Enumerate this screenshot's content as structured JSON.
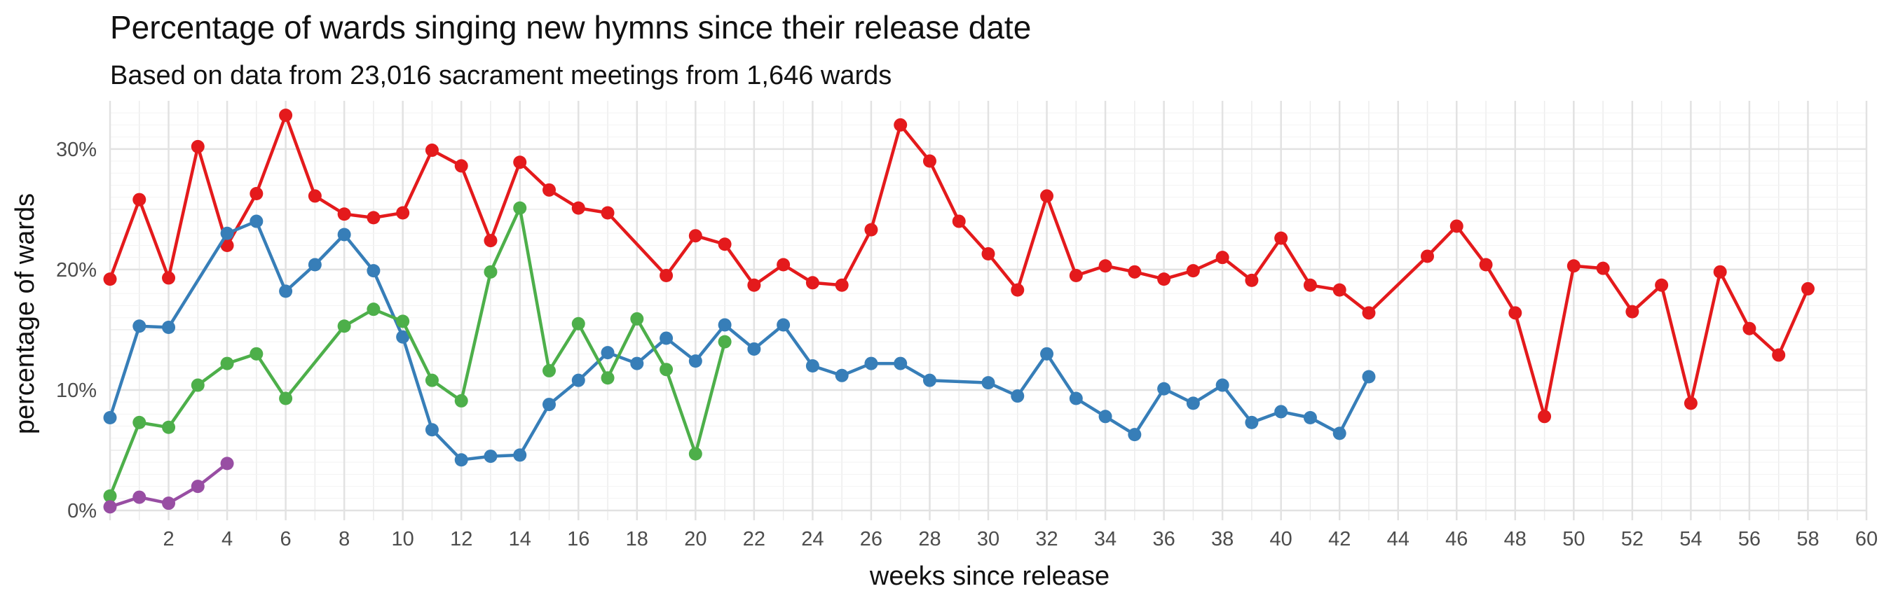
{
  "chart_data": {
    "type": "line",
    "title": "Percentage of wards singing new hymns since their release date",
    "subtitle": "Based on data from 23,016 sacrament meetings from 1,646 wards",
    "xlabel": "weeks since release",
    "ylabel": "percentage of wards",
    "xlim": [
      0,
      60
    ],
    "ylim": [
      0,
      34
    ],
    "x_ticks": [
      2,
      4,
      6,
      8,
      10,
      12,
      14,
      16,
      18,
      20,
      22,
      24,
      26,
      28,
      30,
      32,
      34,
      36,
      38,
      40,
      42,
      44,
      46,
      48,
      50,
      52,
      54,
      56,
      58,
      60
    ],
    "x_tick_labels": [
      "2",
      "4",
      "6",
      "8",
      "10",
      "12",
      "14",
      "16",
      "18",
      "20",
      "22",
      "24",
      "26",
      "28",
      "30",
      "32",
      "34",
      "36",
      "38",
      "40",
      "42",
      "44",
      "46",
      "48",
      "50",
      "52",
      "54",
      "56",
      "58",
      "60"
    ],
    "y_ticks": [
      0,
      10,
      20,
      30
    ],
    "y_tick_labels": [
      "0%",
      "10%",
      "20%",
      "30%"
    ],
    "grid": true,
    "legend": "none",
    "series": [
      {
        "color": "#E41A1C",
        "points": [
          [
            0,
            19.2
          ],
          [
            1,
            25.8
          ],
          [
            2,
            19.3
          ],
          [
            3,
            30.2
          ],
          [
            4,
            22.0
          ],
          [
            5,
            26.3
          ],
          [
            6,
            32.8
          ],
          [
            7,
            26.1
          ],
          [
            8,
            24.6
          ],
          [
            9,
            24.3
          ],
          [
            10,
            24.7
          ],
          [
            11,
            29.9
          ],
          [
            12,
            28.6
          ],
          [
            13,
            22.4
          ],
          [
            14,
            28.9
          ],
          [
            15,
            26.6
          ],
          [
            16,
            25.1
          ],
          [
            17,
            24.7
          ],
          [
            19,
            19.5
          ],
          [
            20,
            22.8
          ],
          [
            21,
            22.1
          ],
          [
            22,
            18.7
          ],
          [
            23,
            20.4
          ],
          [
            24,
            18.9
          ],
          [
            25,
            18.7
          ],
          [
            26,
            23.3
          ],
          [
            27,
            32.0
          ],
          [
            28,
            29.0
          ],
          [
            29,
            24.0
          ],
          [
            30,
            21.3
          ],
          [
            31,
            18.3
          ],
          [
            32,
            26.1
          ],
          [
            33,
            19.5
          ],
          [
            34,
            20.3
          ],
          [
            35,
            19.8
          ],
          [
            36,
            19.2
          ],
          [
            37,
            19.9
          ],
          [
            38,
            21.0
          ],
          [
            39,
            19.1
          ],
          [
            40,
            22.6
          ],
          [
            41,
            18.7
          ],
          [
            42,
            18.3
          ],
          [
            43,
            16.4
          ],
          [
            45,
            21.1
          ],
          [
            46,
            23.6
          ],
          [
            47,
            20.4
          ],
          [
            48,
            16.4
          ],
          [
            49,
            7.8
          ],
          [
            50,
            20.3
          ],
          [
            51,
            20.1
          ],
          [
            52,
            16.5
          ],
          [
            53,
            18.7
          ],
          [
            54,
            8.9
          ],
          [
            55,
            19.8
          ],
          [
            56,
            15.1
          ],
          [
            57,
            12.9
          ],
          [
            58,
            18.4
          ]
        ]
      },
      {
        "color": "#377EB8",
        "points": [
          [
            0,
            7.7
          ],
          [
            1,
            15.3
          ],
          [
            2,
            15.2
          ],
          [
            4,
            23.0
          ],
          [
            5,
            24.0
          ],
          [
            6,
            18.2
          ],
          [
            7,
            20.4
          ],
          [
            8,
            22.9
          ],
          [
            9,
            19.9
          ],
          [
            10,
            14.4
          ],
          [
            11,
            6.7
          ],
          [
            12,
            4.2
          ],
          [
            13,
            4.5
          ],
          [
            14,
            4.6
          ],
          [
            15,
            8.8
          ],
          [
            16,
            10.8
          ],
          [
            17,
            13.1
          ],
          [
            18,
            12.2
          ],
          [
            19,
            14.3
          ],
          [
            20,
            12.4
          ],
          [
            21,
            15.4
          ],
          [
            22,
            13.4
          ],
          [
            23,
            15.4
          ],
          [
            24,
            12.0
          ],
          [
            25,
            11.2
          ],
          [
            26,
            12.2
          ],
          [
            27,
            12.2
          ],
          [
            28,
            10.8
          ],
          [
            30,
            10.6
          ],
          [
            31,
            9.5
          ],
          [
            32,
            13.0
          ],
          [
            33,
            9.3
          ],
          [
            34,
            7.8
          ],
          [
            35,
            6.3
          ],
          [
            36,
            10.1
          ],
          [
            37,
            8.9
          ],
          [
            38,
            10.4
          ],
          [
            39,
            7.3
          ],
          [
            40,
            8.2
          ],
          [
            41,
            7.7
          ],
          [
            42,
            6.4
          ],
          [
            43,
            11.1
          ]
        ]
      },
      {
        "color": "#4DAF4A",
        "points": [
          [
            0,
            1.2
          ],
          [
            1,
            7.3
          ],
          [
            2,
            6.9
          ],
          [
            3,
            10.4
          ],
          [
            4,
            12.2
          ],
          [
            5,
            13.0
          ],
          [
            6,
            9.3
          ],
          [
            8,
            15.3
          ],
          [
            9,
            16.7
          ],
          [
            10,
            15.7
          ],
          [
            11,
            10.8
          ],
          [
            12,
            9.1
          ],
          [
            13,
            19.8
          ],
          [
            14,
            25.1
          ],
          [
            15,
            11.6
          ],
          [
            16,
            15.5
          ],
          [
            17,
            11.0
          ],
          [
            18,
            15.9
          ],
          [
            19,
            11.7
          ],
          [
            20,
            4.7
          ],
          [
            21,
            14.0
          ]
        ]
      },
      {
        "color": "#984EA3",
        "points": [
          [
            0,
            0.3
          ],
          [
            1,
            1.1
          ],
          [
            2,
            0.6
          ],
          [
            3,
            2.0
          ],
          [
            4,
            3.9
          ]
        ]
      }
    ]
  }
}
